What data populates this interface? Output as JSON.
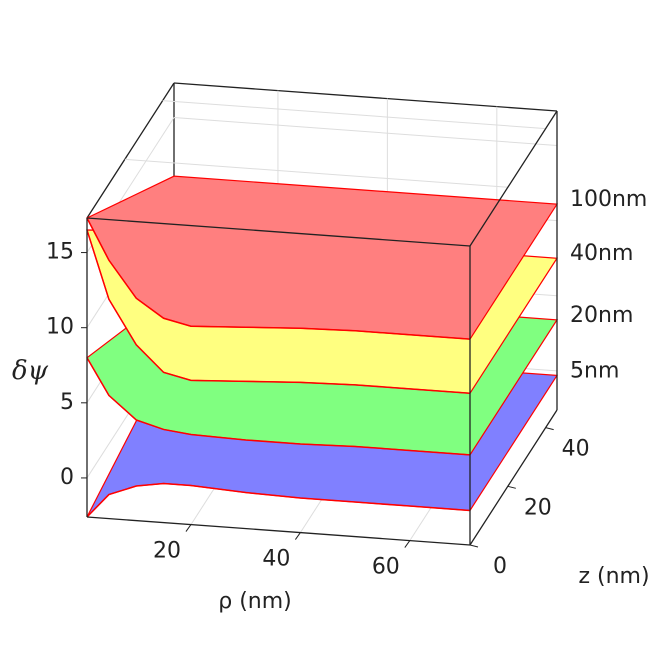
{
  "chart_data": {
    "type": "surface3d",
    "x_label": "ρ (nm)",
    "y_label": "δψ",
    "z_label": "z (nm)",
    "x": [
      1,
      5,
      10,
      15,
      20,
      30,
      40,
      50,
      60,
      71
    ],
    "series": [
      {
        "name": "5nm",
        "color": "#8080ff",
        "values": [
          -2.6,
          -1.0,
          -0.3,
          0,
          0,
          -0.2,
          -0.3,
          -0.3,
          -0.3,
          -0.3
        ]
      },
      {
        "name": "20nm",
        "color": "#80ff80",
        "values": [
          8.0,
          5.6,
          4.1,
          3.6,
          3.4,
          3.3,
          3.3,
          3.4,
          3.4,
          3.4
        ]
      },
      {
        "name": "40nm",
        "color": "#ffff80",
        "values": [
          16.5,
          12.0,
          9.1,
          7.4,
          7.0,
          7.2,
          7.4,
          7.5,
          7.5,
          7.5
        ]
      },
      {
        "name": "100nm",
        "color": "#ff7f7f",
        "values": [
          17.3,
          14.6,
          12.2,
          11.0,
          10.6,
          10.8,
          11.0,
          11.1,
          11.1,
          11.1
        ]
      }
    ],
    "edge_color": "#ff0000",
    "xlim": [
      1,
      71
    ],
    "xticks": [
      20,
      40,
      60
    ],
    "ylim": [
      -2.6,
      17.3
    ],
    "yticks": [
      0,
      5,
      10,
      15
    ],
    "zlim": [
      0,
      46
    ],
    "zticks": [
      0,
      20,
      40
    ],
    "grid": true
  }
}
